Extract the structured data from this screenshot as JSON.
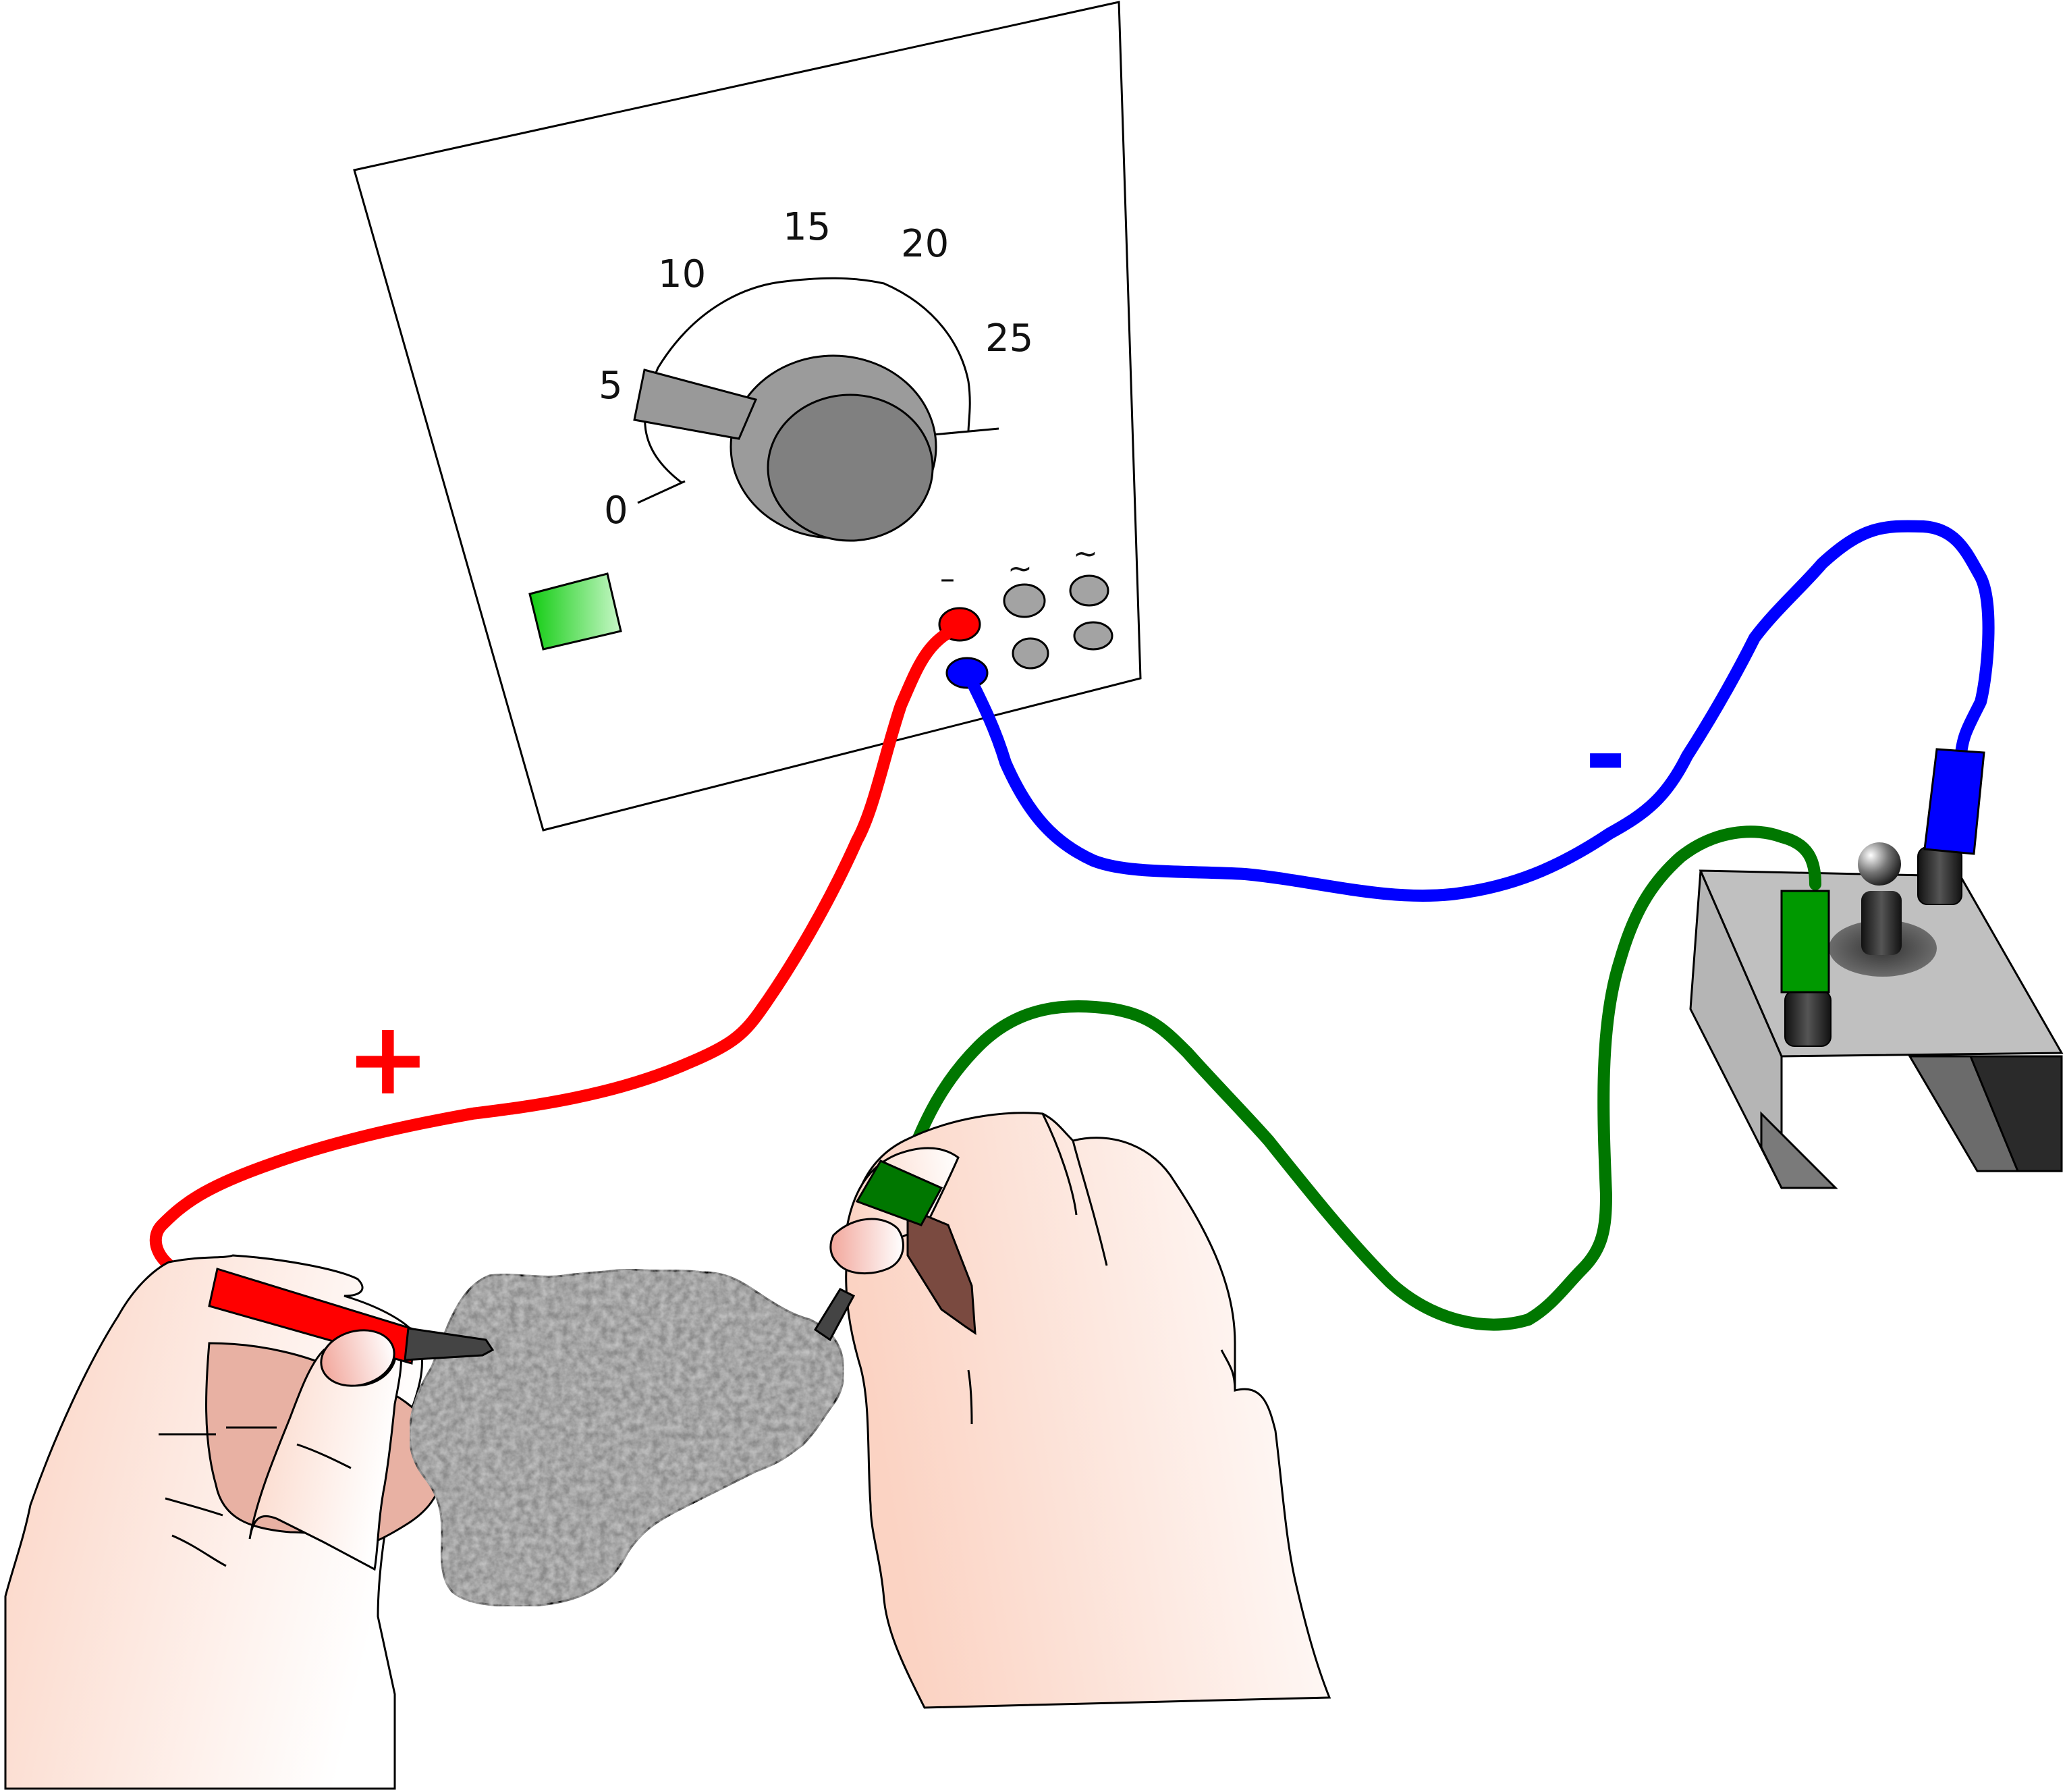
{
  "dial": {
    "scale_labels": [
      "0",
      "5",
      "10",
      "15",
      "20",
      "25"
    ],
    "knob_setting": "5"
  },
  "sockets": {
    "dc_symbol": "–",
    "ac_symbol_1": "~",
    "ac_symbol_2": "~"
  },
  "polarity": {
    "plus": "+",
    "minus": "-"
  },
  "colors": {
    "positive_lead": "#ff0000",
    "negative_lead": "#0000ff",
    "ground_lead": "#007700",
    "indicator": "#33dd33",
    "knob": "#8a8a8a",
    "rock": "#8c8c8c",
    "skin": "#fde6dc"
  },
  "icons": [
    "power-supply-panel",
    "voltage-knob-icon",
    "indicator-lamp-icon",
    "rock-sample-icon",
    "hand-icon",
    "test-probe-icon",
    "terminal-stand-icon"
  ]
}
